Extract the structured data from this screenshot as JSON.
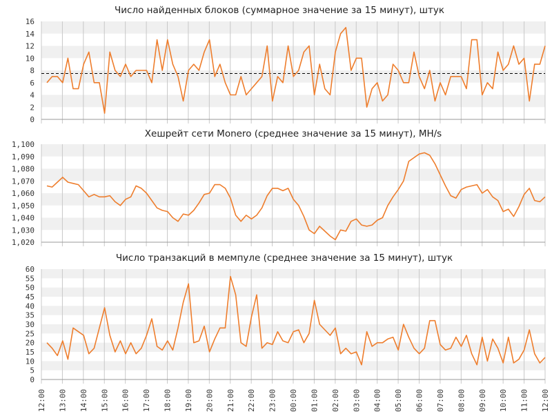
{
  "colors": {
    "line": "#ee7d2c",
    "band": "#f0f0f0",
    "grid": "#c8c8c8",
    "reference_line": "#000000"
  },
  "x_axis": {
    "tick_labels": [
      "12:00",
      "13:00",
      "14:00",
      "15:00",
      "16:00",
      "17:00",
      "18:00",
      "19:00",
      "20:00",
      "21:00",
      "22:00",
      "23:00",
      "00:00",
      "01:00",
      "02:00",
      "03:00",
      "04:00",
      "05:00",
      "06:00",
      "07:00",
      "08:00",
      "09:00",
      "10:00",
      "11:00",
      "12:00"
    ]
  },
  "chart_data": [
    {
      "type": "line",
      "title": "Число найденных блоков (суммарное значение за 15 минут), штук",
      "ylim": [
        0,
        16
      ],
      "y_ticks": [
        0,
        2,
        4,
        6,
        8,
        10,
        12,
        14,
        16
      ],
      "y_tick_labels": [
        "0",
        "2",
        "4",
        "6",
        "8",
        "10",
        "12",
        "14",
        "16"
      ],
      "reference_line": 7.5,
      "x_start": "12:00",
      "x_end": "12:00",
      "grid": true,
      "series": [
        {
          "values": [
            6,
            7,
            7,
            6,
            10,
            5,
            5,
            9,
            11,
            6,
            6,
            1,
            11,
            8,
            7,
            9,
            7,
            8,
            8,
            8,
            6,
            13,
            8,
            13,
            9,
            7,
            3,
            8,
            9,
            8,
            11,
            13,
            7,
            9,
            6,
            4,
            4,
            7,
            4,
            5,
            6,
            7,
            12,
            3,
            7,
            6,
            12,
            7,
            8,
            11,
            12,
            4,
            9,
            5,
            4,
            11,
            14,
            15,
            8,
            10,
            10,
            2,
            5,
            6,
            3,
            4,
            9,
            8,
            6,
            6,
            11,
            7,
            5,
            8,
            3,
            6,
            4,
            7,
            7,
            7,
            5,
            13,
            13,
            4,
            6,
            5,
            11,
            8,
            9,
            12,
            9,
            10,
            3,
            9,
            9,
            12
          ]
        }
      ]
    },
    {
      "type": "line",
      "title": "Хешрейт сети Monero (среднее значение за 15 минут), MH/s",
      "ylim": [
        1020,
        1100
      ],
      "y_ticks": [
        1020,
        1030,
        1040,
        1050,
        1060,
        1070,
        1080,
        1090,
        1100
      ],
      "y_tick_labels": [
        "1,020",
        "1,030",
        "1,040",
        "1,050",
        "1,060",
        "1,070",
        "1,080",
        "1,090",
        "1,100"
      ],
      "x_start": "12:00",
      "x_end": "12:00",
      "grid": true,
      "series": [
        {
          "values": [
            1066,
            1065,
            1069,
            1073,
            1069,
            1068,
            1067,
            1062,
            1057,
            1059,
            1057,
            1057,
            1058,
            1053,
            1050,
            1055,
            1057,
            1066,
            1064,
            1060,
            1054,
            1048,
            1046,
            1045,
            1040,
            1037,
            1043,
            1042,
            1046,
            1052,
            1059,
            1060,
            1067,
            1067,
            1064,
            1056,
            1042,
            1037,
            1042,
            1039,
            1042,
            1048,
            1058,
            1064,
            1064,
            1062,
            1064,
            1055,
            1050,
            1041,
            1030,
            1027,
            1033,
            1029,
            1025,
            1022,
            1030,
            1029,
            1037,
            1039,
            1034,
            1033,
            1034,
            1038,
            1040,
            1050,
            1057,
            1063,
            1070,
            1086,
            1089,
            1092,
            1093,
            1091,
            1084,
            1075,
            1066,
            1058,
            1056,
            1063,
            1065,
            1066,
            1067,
            1060,
            1063,
            1057,
            1054,
            1045,
            1047,
            1041,
            1049,
            1059,
            1064,
            1054,
            1053,
            1057
          ]
        }
      ]
    },
    {
      "type": "line",
      "title": "Число транзакций в мемпуле (среднее значение за 15 минут), штук",
      "ylim": [
        0,
        60
      ],
      "y_ticks": [
        0,
        5,
        10,
        15,
        20,
        25,
        30,
        35,
        40,
        45,
        50,
        55,
        60
      ],
      "y_tick_labels": [
        "0",
        "5",
        "10",
        "15",
        "20",
        "25",
        "30",
        "35",
        "40",
        "45",
        "50",
        "55",
        "60"
      ],
      "x_start": "12:00",
      "x_end": "12:00",
      "grid": true,
      "series": [
        {
          "values": [
            20,
            17,
            13,
            21,
            11,
            28,
            26,
            24,
            14,
            17,
            28,
            39,
            24,
            15,
            21,
            14,
            20,
            14,
            17,
            24,
            33,
            18,
            16,
            21,
            16,
            28,
            42,
            52,
            20,
            21,
            29,
            15,
            22,
            28,
            28,
            56,
            46,
            20,
            18,
            34,
            46,
            17,
            20,
            19,
            26,
            21,
            20,
            26,
            27,
            20,
            25,
            43,
            30,
            27,
            24,
            28,
            14,
            17,
            14,
            15,
            8,
            26,
            18,
            20,
            20,
            22,
            23,
            16,
            30,
            23,
            17,
            14,
            17,
            32,
            32,
            19,
            16,
            17,
            23,
            18,
            24,
            14,
            8,
            23,
            10,
            22,
            17,
            9,
            23,
            9,
            11,
            16,
            27,
            14,
            9,
            12
          ]
        }
      ]
    }
  ]
}
